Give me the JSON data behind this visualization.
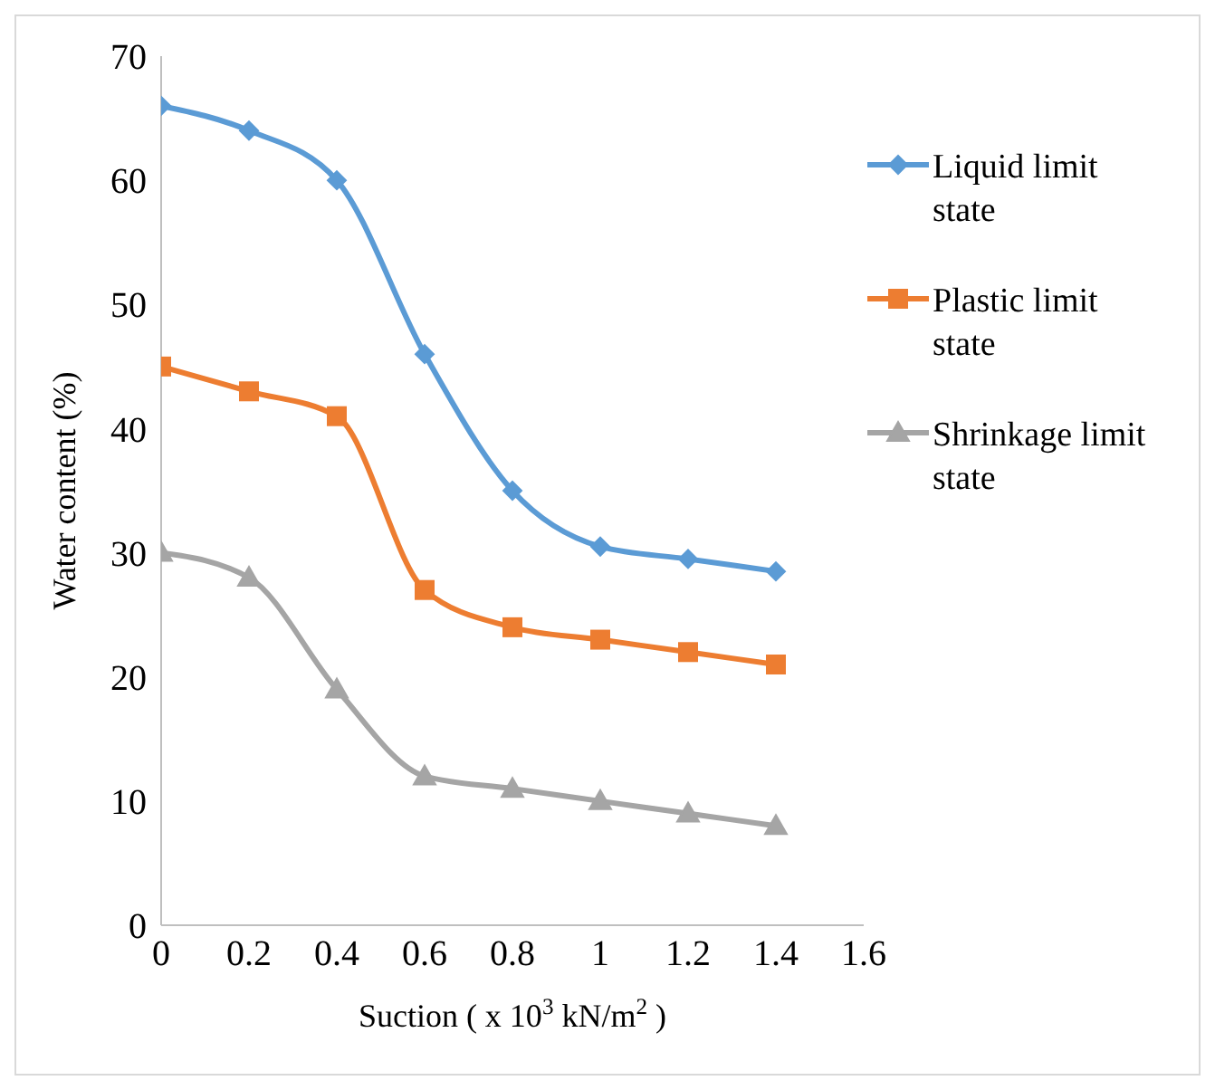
{
  "chart_data": {
    "type": "line",
    "xlabel": "Suction ( x 10$^{3}$ kN/m$^{2}$ )",
    "ylabel": "Water content (%)",
    "x": [
      0,
      0.2,
      0.4,
      0.6,
      0.8,
      1,
      1.2,
      1.4
    ],
    "series": [
      {
        "name": "Liquid limit state",
        "color": "#5b9bd5",
        "marker": "diamond",
        "values": [
          66,
          64,
          60,
          46,
          35,
          30.5,
          29.5,
          28.5
        ]
      },
      {
        "name": "Plastic limit state",
        "color": "#ed7d31",
        "marker": "square",
        "values": [
          45,
          43,
          41,
          27,
          24,
          23,
          22,
          21
        ]
      },
      {
        "name": "Shrinkage limit state",
        "color": "#a5a5a5",
        "marker": "triangle",
        "values": [
          30,
          28,
          19,
          12,
          11,
          10,
          9,
          8
        ]
      }
    ],
    "xlim": [
      0,
      1.6
    ],
    "xticks": [
      0,
      0.2,
      0.4,
      0.6,
      0.8,
      1,
      1.2,
      1.4,
      1.6
    ],
    "ylim": [
      0,
      70
    ],
    "yticks": [
      0,
      10,
      20,
      30,
      40,
      50,
      60,
      70
    ],
    "grid": false,
    "legend": "top right",
    "line_style": "solid"
  }
}
